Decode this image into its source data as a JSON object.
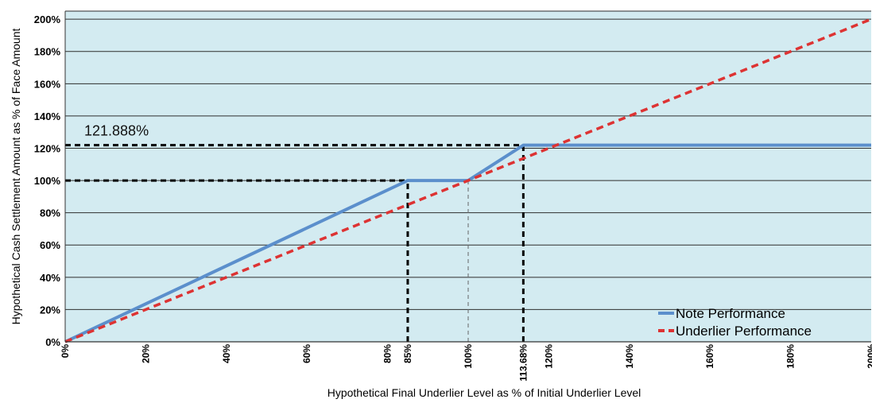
{
  "chart_data": {
    "type": "line",
    "xlabel": "Hypothetical Final Underlier Level as % of Initial Underlier Level",
    "ylabel": "Hypothetical Cash Settlement Amount as % of Face Amount",
    "xlim": [
      0,
      200
    ],
    "ylim": [
      0,
      205
    ],
    "grid": true,
    "legend_position": "bottom-right",
    "x_tick_values": [
      0,
      20,
      40,
      60,
      80,
      85,
      100,
      113.68,
      120,
      140,
      160,
      180,
      200
    ],
    "x_tick_labels": [
      "0%",
      "20%",
      "40%",
      "60%",
      "80%",
      "85%",
      "100%",
      "113.68%",
      "120%",
      "140%",
      "160%",
      "180%",
      "200%"
    ],
    "y_tick_values": [
      0,
      20,
      40,
      60,
      80,
      100,
      120,
      140,
      160,
      180,
      200
    ],
    "y_tick_labels": [
      "0%",
      "20%",
      "40%",
      "60%",
      "80%",
      "100%",
      "120%",
      "140%",
      "160%",
      "180%",
      "200%"
    ],
    "series": [
      {
        "name": "Note Performance",
        "color": "#5b8fcc",
        "style": "solid",
        "x": [
          0,
          85,
          100,
          113.68,
          200
        ],
        "y": [
          0,
          100,
          100,
          121.888,
          121.888
        ]
      },
      {
        "name": "Underlier Performance",
        "color": "#dd3333",
        "style": "dashed",
        "x": [
          0,
          200
        ],
        "y": [
          0,
          200
        ]
      }
    ],
    "annotations": [
      {
        "text": "121.888%",
        "x": 121.888
      }
    ],
    "reference_lines": [
      {
        "orientation": "horizontal",
        "value": 121.888,
        "x_from": 0,
        "x_to": 113.68,
        "style": "bold-dashed"
      },
      {
        "orientation": "horizontal",
        "value": 100,
        "x_from": 0,
        "x_to": 85,
        "style": "bold-dashed"
      },
      {
        "orientation": "vertical",
        "value": 85,
        "y_from": 0,
        "y_to": 100,
        "style": "bold-dashed"
      },
      {
        "orientation": "vertical",
        "value": 113.68,
        "y_from": 0,
        "y_to": 121.888,
        "style": "bold-dashed"
      },
      {
        "orientation": "vertical",
        "value": 100,
        "y_from": 0,
        "y_to": 100,
        "style": "thin-dashed"
      }
    ],
    "colors": {
      "plot_background": "#d3ebf1",
      "grid": "#2e2e2e",
      "reference": "#000000"
    }
  }
}
